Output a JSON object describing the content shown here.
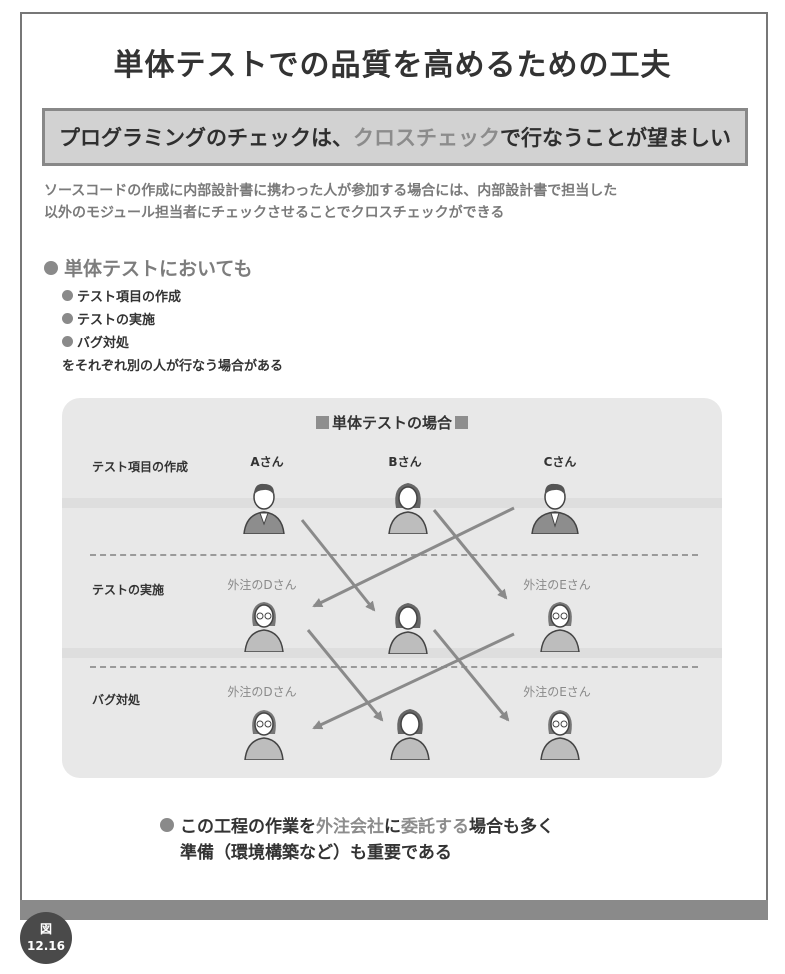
{
  "title": "単体テストでの品質を高めるための工夫",
  "banner": {
    "part1": "プログラミングのチェックは、",
    "highlight": "クロスチェック",
    "part2": "で行なうことが望ましい"
  },
  "description": [
    "ソースコードの作成に内部設計書に携わった人が参加する場合には、内部設計書で担当した",
    "以外のモジュール担当者にチェックさせることでクロスチェックができる"
  ],
  "section_heading": "単体テストにおいても",
  "bullets": [
    "テスト項目の作成",
    "テストの実施",
    "バグ対処"
  ],
  "bullets_tail": "をそれぞれ別の人が行なう場合がある",
  "diagram": {
    "title": "単体テストの場合",
    "rows": [
      "テスト項目の作成",
      "テストの実施",
      "バグ対処"
    ],
    "people": {
      "a": "Aさん",
      "b": "Bさん",
      "c": "Cさん",
      "d_row2": "外注のDさん",
      "e_row2": "外注のEさん",
      "d_row3": "外注のDさん",
      "e_row3": "外注のEさん"
    },
    "colors": {
      "arrow": "#8a8a8a",
      "panel": "#e8e8e8"
    }
  },
  "closing": {
    "part1": "この工程の作業を",
    "hl1": "外注会社",
    "part2": "に",
    "hl2": "委託する",
    "part3": "場合も多く",
    "line2": "準備（環境構築など）も重要である"
  },
  "badge": {
    "label": "図",
    "number": "12.16"
  }
}
